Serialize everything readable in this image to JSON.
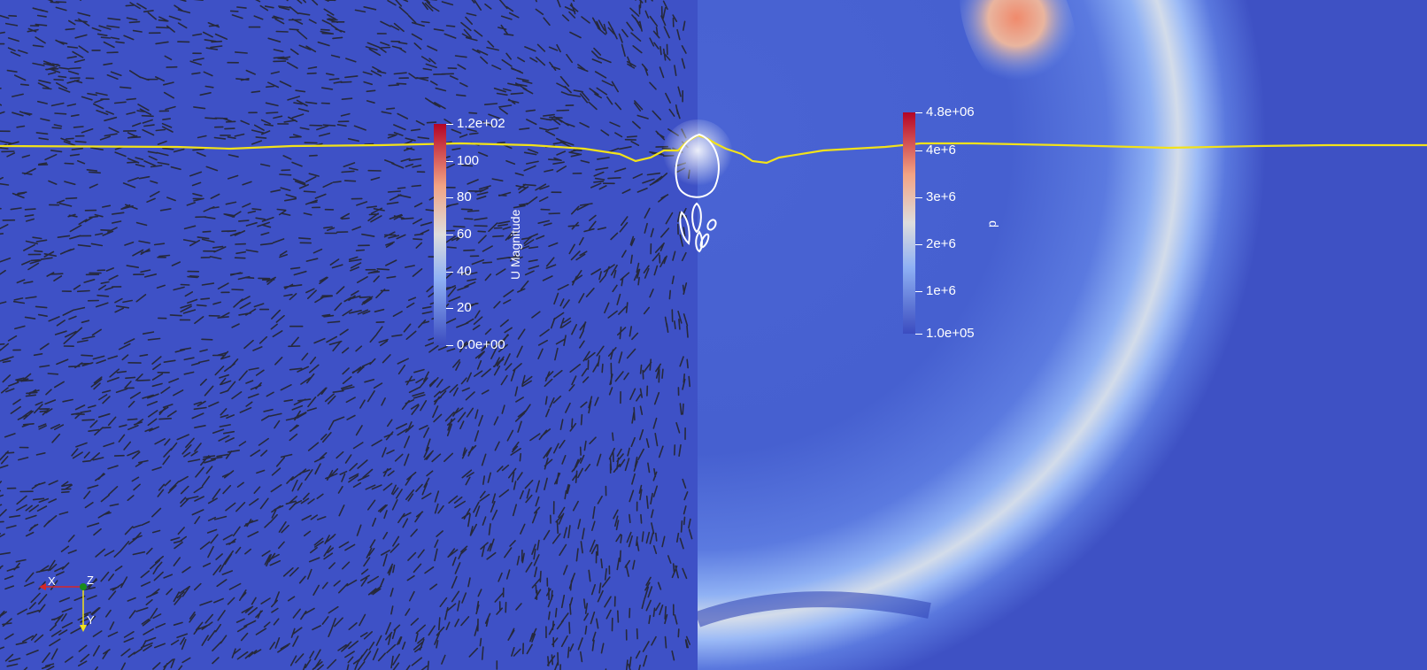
{
  "colormap": {
    "low": "#3b4cc0",
    "mid": "#dddddd",
    "high": "#b40426"
  },
  "left_view": {
    "field": "U Magnitude",
    "vectors": "glyph-arrows",
    "glyph_color": "#222222"
  },
  "right_view": {
    "field": "p"
  },
  "interface_line_color": "#f2e21a",
  "contour_color": "#ffffff",
  "colorbar_u": {
    "title": "U Magnitude",
    "ticks": [
      {
        "label": "1.2e+02",
        "value": 120
      },
      {
        "label": "100",
        "value": 100
      },
      {
        "label": "80",
        "value": 80
      },
      {
        "label": "60",
        "value": 60
      },
      {
        "label": "40",
        "value": 40
      },
      {
        "label": "20",
        "value": 20
      },
      {
        "label": "0.0e+00",
        "value": 0
      }
    ],
    "range": [
      0,
      120
    ]
  },
  "colorbar_p": {
    "title": "p",
    "ticks": [
      {
        "label": "4.8e+06",
        "value": 4800000
      },
      {
        "label": "4e+6",
        "value": 4000000
      },
      {
        "label": "3e+6",
        "value": 3000000
      },
      {
        "label": "2e+6",
        "value": 2000000
      },
      {
        "label": "1e+6",
        "value": 1000000
      },
      {
        "label": "1.0e+05",
        "value": 100000
      }
    ],
    "range": [
      100000,
      4800000
    ]
  },
  "orientation_axes": {
    "x_label": "X",
    "y_label": "Y",
    "z_label": "Z",
    "x_color": "#d62728",
    "y_color": "#f2e21a",
    "z_color": "#1a8c1a"
  }
}
